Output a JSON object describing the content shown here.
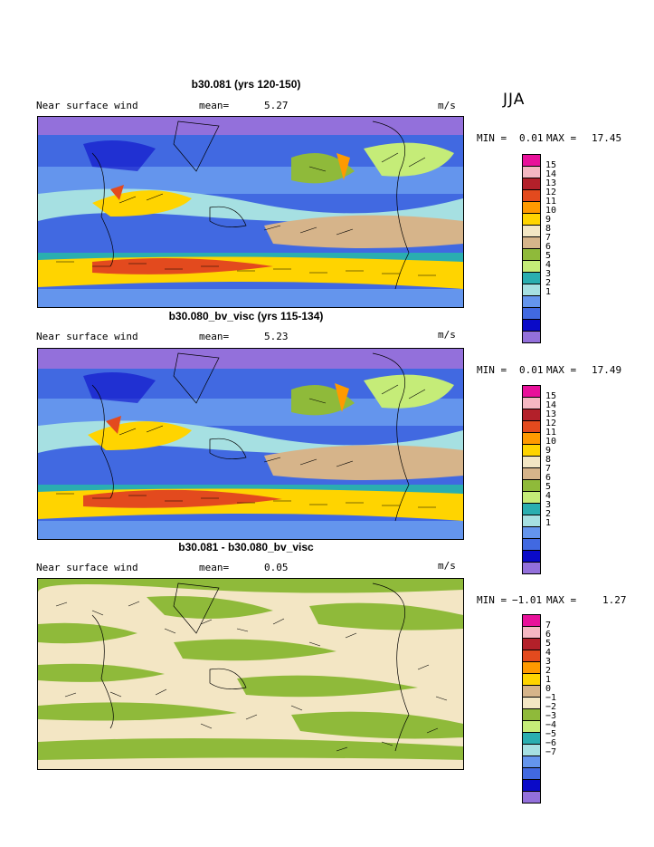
{
  "season": "JJA",
  "panels": [
    {
      "title": "b30.081 (yrs 120-150)",
      "field": "Near surface wind",
      "mean_label": "mean=",
      "mean": "5.27",
      "units": "m/s",
      "min_label": "MIN =",
      "min": "0.01",
      "max_label": "MAX =",
      "max": "17.45",
      "levels": [
        "15",
        "14",
        "13",
        "12",
        "11",
        "10",
        "9",
        "8",
        "7",
        "6",
        "5",
        "4",
        "3",
        "2",
        "1"
      ],
      "colors": [
        "#e8119a",
        "#f5b7c2",
        "#b3202a",
        "#e34a1e",
        "#ff9a00",
        "#ffd400",
        "#f3e6c4",
        "#d6b48a",
        "#8fba3a",
        "#c5ec78",
        "#2aaeb0",
        "#a6e0e2",
        "#6495ed",
        "#4169e1",
        "#0a0ac8",
        "#9370db"
      ]
    },
    {
      "title": "b30.080_bv_visc (yrs 115-134)",
      "field": "Near surface wind",
      "mean_label": "mean=",
      "mean": "5.23",
      "units": "m/s",
      "min_label": "MIN =",
      "min": "0.01",
      "max_label": "MAX =",
      "max": "17.49",
      "levels": [
        "15",
        "14",
        "13",
        "12",
        "11",
        "10",
        "9",
        "8",
        "7",
        "6",
        "5",
        "4",
        "3",
        "2",
        "1"
      ],
      "colors": [
        "#e8119a",
        "#f5b7c2",
        "#b3202a",
        "#e34a1e",
        "#ff9a00",
        "#ffd400",
        "#f3e6c4",
        "#d6b48a",
        "#8fba3a",
        "#c5ec78",
        "#2aaeb0",
        "#a6e0e2",
        "#6495ed",
        "#4169e1",
        "#0a0ac8",
        "#9370db"
      ]
    },
    {
      "title": "b30.081 - b30.080_bv_visc",
      "field": "Near surface wind",
      "mean_label": "mean=",
      "mean": "0.05",
      "units": "m/s",
      "min_label": "MIN =",
      "min": "−1.01",
      "max_label": "MAX =",
      "max": "1.27",
      "levels": [
        "7",
        "6",
        "5",
        "4",
        "3",
        "2",
        "1",
        "0",
        "−1",
        "−2",
        "−3",
        "−4",
        "−5",
        "−6",
        "−7"
      ],
      "colors": [
        "#e8119a",
        "#f5b7c2",
        "#b3202a",
        "#e34a1e",
        "#ff9a00",
        "#ffd400",
        "#d6b48a",
        "#f3e6c4",
        "#8fba3a",
        "#c5ec78",
        "#2aaeb0",
        "#a6e0e2",
        "#6495ed",
        "#4169e1",
        "#0a0ac8",
        "#9370db"
      ]
    }
  ],
  "chart_data": [
    {
      "type": "heatmap",
      "title": "b30.081 (yrs 120-150)",
      "variable": "Near surface wind",
      "units": "m/s",
      "mean": 5.27,
      "min": 0.01,
      "max": 17.45,
      "contour_levels": [
        1,
        2,
        3,
        4,
        5,
        6,
        7,
        8,
        9,
        10,
        11,
        12,
        13,
        14,
        15
      ],
      "overlay": "wind vectors",
      "season": "JJA"
    },
    {
      "type": "heatmap",
      "title": "b30.080_bv_visc (yrs 115-134)",
      "variable": "Near surface wind",
      "units": "m/s",
      "mean": 5.23,
      "min": 0.01,
      "max": 17.49,
      "contour_levels": [
        1,
        2,
        3,
        4,
        5,
        6,
        7,
        8,
        9,
        10,
        11,
        12,
        13,
        14,
        15
      ],
      "overlay": "wind vectors",
      "season": "JJA"
    },
    {
      "type": "heatmap",
      "title": "b30.081 - b30.080_bv_visc",
      "variable": "Near surface wind",
      "units": "m/s",
      "mean": 0.05,
      "min": -1.01,
      "max": 1.27,
      "contour_levels": [
        -7,
        -6,
        -5,
        -4,
        -3,
        -2,
        -1,
        0,
        1,
        2,
        3,
        4,
        5,
        6,
        7
      ],
      "overlay": "wind vectors (difference)",
      "season": "JJA"
    }
  ]
}
